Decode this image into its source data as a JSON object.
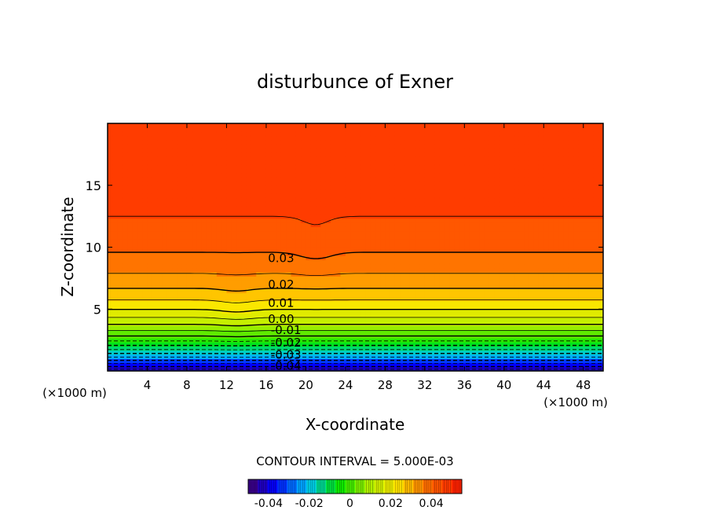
{
  "chart_data": {
    "type": "contour",
    "title": "disturbunce of Exner",
    "xlabel": "X-coordinate",
    "ylabel": "Z-coordinate",
    "x_unit": "(×1000 m)",
    "xlim": [
      0,
      50
    ],
    "ylim": [
      0,
      20
    ],
    "x_ticks": [
      4,
      8,
      12,
      16,
      20,
      24,
      28,
      32,
      36,
      40,
      44,
      48
    ],
    "y_ticks": [
      5,
      10,
      15
    ],
    "contour_interval_text": "CONTOUR INTERVAL = 5.000E-03",
    "contour_labels": [
      {
        "text": "0.03",
        "x": 17.5,
        "z": 9.1
      },
      {
        "text": "0.02",
        "x": 17.5,
        "z": 7.0
      },
      {
        "text": "0.01",
        "x": 17.5,
        "z": 5.5
      },
      {
        "text": "0.00",
        "x": 17.5,
        "z": 4.2
      },
      {
        "text": "-0.01",
        "x": 18.0,
        "z": 3.3
      },
      {
        "text": "-0.02",
        "x": 18.0,
        "z": 2.3
      },
      {
        "text": "-0.03",
        "x": 18.0,
        "z": 1.3
      },
      {
        "text": "-0.04",
        "x": 18.0,
        "z": 0.4
      }
    ],
    "colorbar": {
      "min": -0.05,
      "max": 0.055,
      "ticks": [
        "-0.04",
        "-0.02",
        "0",
        "0.02",
        "0.04"
      ],
      "tick_values": [
        -0.04,
        -0.02,
        0,
        0.02,
        0.04
      ]
    },
    "colors": {
      "low": "#3b0070",
      "mid_low": "#0000ff",
      "mid": "#00e000",
      "mid_high": "#ffff00",
      "high": "#ff2000"
    }
  }
}
